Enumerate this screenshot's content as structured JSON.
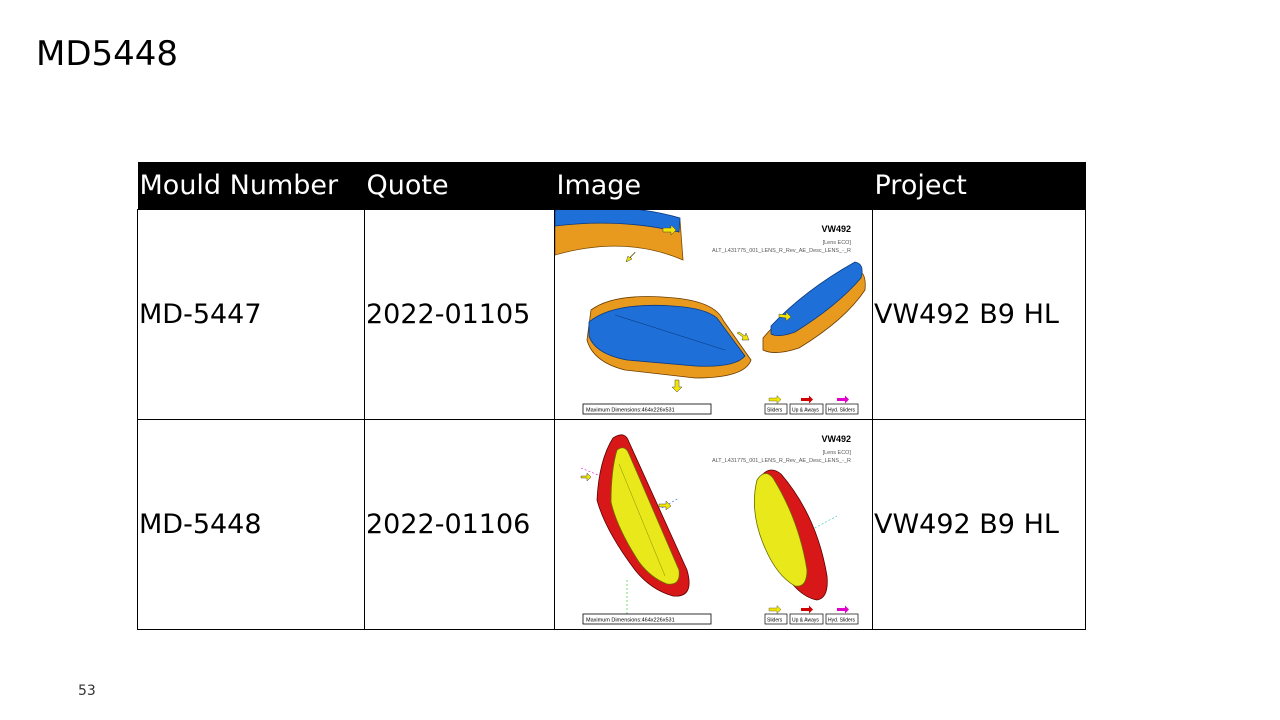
{
  "slide": {
    "title": "MD5448",
    "page_number": "53"
  },
  "table": {
    "headers": [
      "Mould Number",
      "Quote",
      "Image",
      "Project"
    ],
    "rows": [
      {
        "mould_number": "MD-5447",
        "quote": "2022-01105",
        "project": "VW492 B9 HL",
        "image": {
          "header": "VW492",
          "subheader": "[Lens ECO]",
          "file_label": "ALT_L431775_001_LENS_R_Rev_AE_Desc_LENS_-_R",
          "dimensions": "Maximum Dimensions:464x226x531",
          "legend": [
            "Sliders",
            "Up & Aways",
            "Hyd. Sliders"
          ]
        }
      },
      {
        "mould_number": "MD-5448",
        "quote": "2022-01106",
        "project": "VW492 B9 HL",
        "image": {
          "header": "VW492",
          "subheader": "[Lens ECO]",
          "file_label": "ALT_L431775_001_LENS_R_Rev_AE_Desc_LENS_-_R",
          "dimensions": "Maximum Dimensions:464x226x531",
          "legend": [
            "Sliders",
            "Up & Aways",
            "Hyd. Sliders"
          ]
        }
      }
    ]
  },
  "colors": {
    "header_bg": "#000000",
    "part_blue": "#1f6fd8",
    "part_orange": "#e89a1e",
    "part_red": "#d81818",
    "part_yellow": "#e8e81a",
    "arrow_yellow": "#f2e600",
    "arrow_red": "#d00000",
    "arrow_magenta": "#e000c8"
  }
}
